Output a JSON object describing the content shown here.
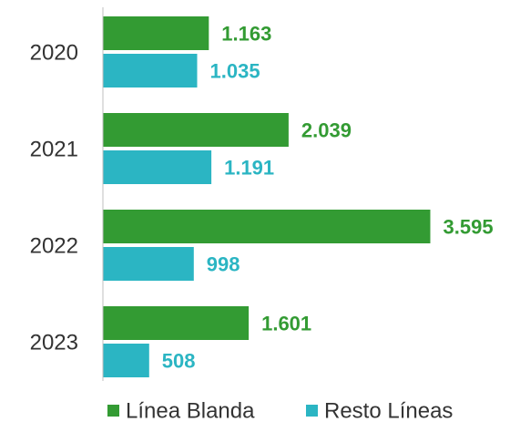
{
  "chart_data": {
    "type": "bar",
    "orientation": "horizontal",
    "categories": [
      "2020",
      "2021",
      "2022",
      "2023"
    ],
    "series": [
      {
        "name": "Línea Blanda",
        "color": "#339b33",
        "values": [
          1163,
          2039,
          3595,
          1601
        ],
        "value_labels": [
          "1.163",
          "2.039",
          "3.595",
          "1.601"
        ]
      },
      {
        "name": "Resto Líneas",
        "color": "#2bb5c3",
        "values": [
          1035,
          1191,
          998,
          508
        ],
        "value_labels": [
          "1.035",
          "1.191",
          "998",
          "508"
        ]
      }
    ],
    "xlim": [
      0,
      4000
    ],
    "legend": "bottom"
  }
}
